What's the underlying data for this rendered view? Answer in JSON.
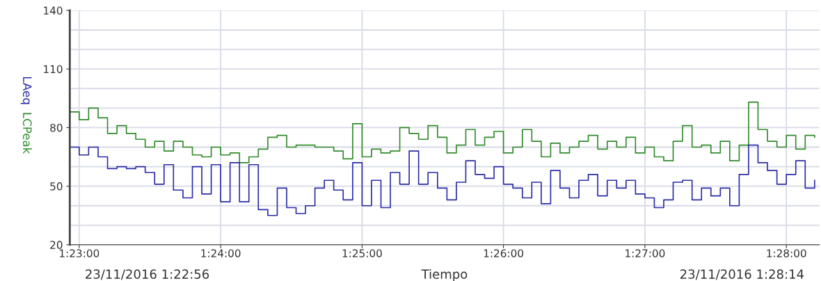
{
  "chart_data": {
    "type": "step",
    "xlabel": "Tiempo",
    "annotations": [
      "23/11/2016 1:22:56",
      "23/11/2016 1:28:14"
    ],
    "x": [
      1.38222,
      1.38333,
      1.38444,
      1.38556,
      1.38667,
      1.38778,
      1.38889,
      1.39,
      1.39111,
      1.39222,
      1.39333,
      1.39444,
      1.39556,
      1.39667,
      1.39778,
      1.39889,
      1.4,
      1.40111,
      1.40222,
      1.40333,
      1.40444,
      1.40556,
      1.40667,
      1.40778,
      1.40889,
      1.41,
      1.41111,
      1.41222,
      1.41333,
      1.41444,
      1.41556,
      1.41667,
      1.41778,
      1.41889,
      1.42,
      1.42111,
      1.42222,
      1.42333,
      1.42444,
      1.42556,
      1.42667,
      1.42778,
      1.42889,
      1.43,
      1.43111,
      1.43222,
      1.43333,
      1.43444,
      1.43556,
      1.43667,
      1.43778,
      1.43889,
      1.44,
      1.44111,
      1.44222,
      1.44333,
      1.44444,
      1.44556,
      1.44667,
      1.44778,
      1.44889,
      1.45,
      1.45111,
      1.45222,
      1.45333,
      1.45444,
      1.45556,
      1.45667,
      1.45778,
      1.45889,
      1.46,
      1.46111,
      1.46222,
      1.46333,
      1.46444,
      1.46556,
      1.46667,
      1.46778,
      1.46889,
      1.47
    ],
    "series": [
      {
        "name": "LCPeak",
        "color": "#2f8a2a",
        "values": [
          88,
          84,
          90,
          85,
          77,
          81,
          77,
          74,
          70,
          73,
          68,
          73,
          70,
          66,
          65,
          70,
          66,
          67,
          62,
          65,
          69,
          75,
          76,
          70,
          71,
          71,
          70,
          70,
          68,
          64,
          82,
          65,
          69,
          67,
          68,
          80,
          77,
          74,
          81,
          75,
          67,
          71,
          79,
          71,
          75,
          78,
          67,
          70,
          79,
          73,
          65,
          72,
          67,
          70,
          73,
          76,
          69,
          73,
          70,
          75,
          67,
          70,
          65,
          63,
          73,
          81,
          70,
          71,
          67,
          73,
          63,
          71,
          93,
          79,
          73,
          70,
          76,
          69,
          76,
          75
        ]
      },
      {
        "name": "LAeq",
        "color": "#2a2aa6",
        "values": [
          70,
          66,
          70,
          65,
          59,
          60,
          59,
          60,
          57,
          51,
          61,
          48,
          44,
          60,
          46,
          61,
          42,
          62,
          42,
          61,
          38,
          35,
          49,
          39,
          36,
          40,
          49,
          53,
          48,
          43,
          62,
          40,
          53,
          39,
          57,
          51,
          68,
          51,
          57,
          49,
          43,
          52,
          63,
          56,
          54,
          60,
          51,
          49,
          44,
          52,
          41,
          58,
          49,
          44,
          53,
          56,
          45,
          53,
          49,
          53,
          46,
          44,
          39,
          43,
          52,
          53,
          43,
          49,
          45,
          49,
          40,
          56,
          71,
          62,
          58,
          51,
          56,
          63,
          49,
          53
        ]
      }
    ],
    "xlim": [
      1.38222,
      1.47056
    ],
    "xticks": [
      {
        "value": 1.38333,
        "label": "1:23:00"
      },
      {
        "value": 1.4,
        "label": "1:24:00"
      },
      {
        "value": 1.41667,
        "label": "1:25:00"
      },
      {
        "value": 1.43333,
        "label": "1:26:00"
      },
      {
        "value": 1.45,
        "label": "1:27:00"
      },
      {
        "value": 1.46667,
        "label": "1:28:00"
      }
    ],
    "ylim": [
      20,
      140
    ],
    "yticks": [
      20,
      {
        "value": 30,
        "label": null
      },
      {
        "value": 40,
        "label": null
      },
      50,
      {
        "value": 60,
        "label": null
      },
      {
        "value": 70,
        "label": null
      },
      80,
      {
        "value": 90,
        "label": null
      },
      {
        "value": 100,
        "label": null
      },
      110,
      {
        "value": 120,
        "label": null
      },
      {
        "value": 130,
        "label": null
      },
      140
    ],
    "grid": true
  }
}
